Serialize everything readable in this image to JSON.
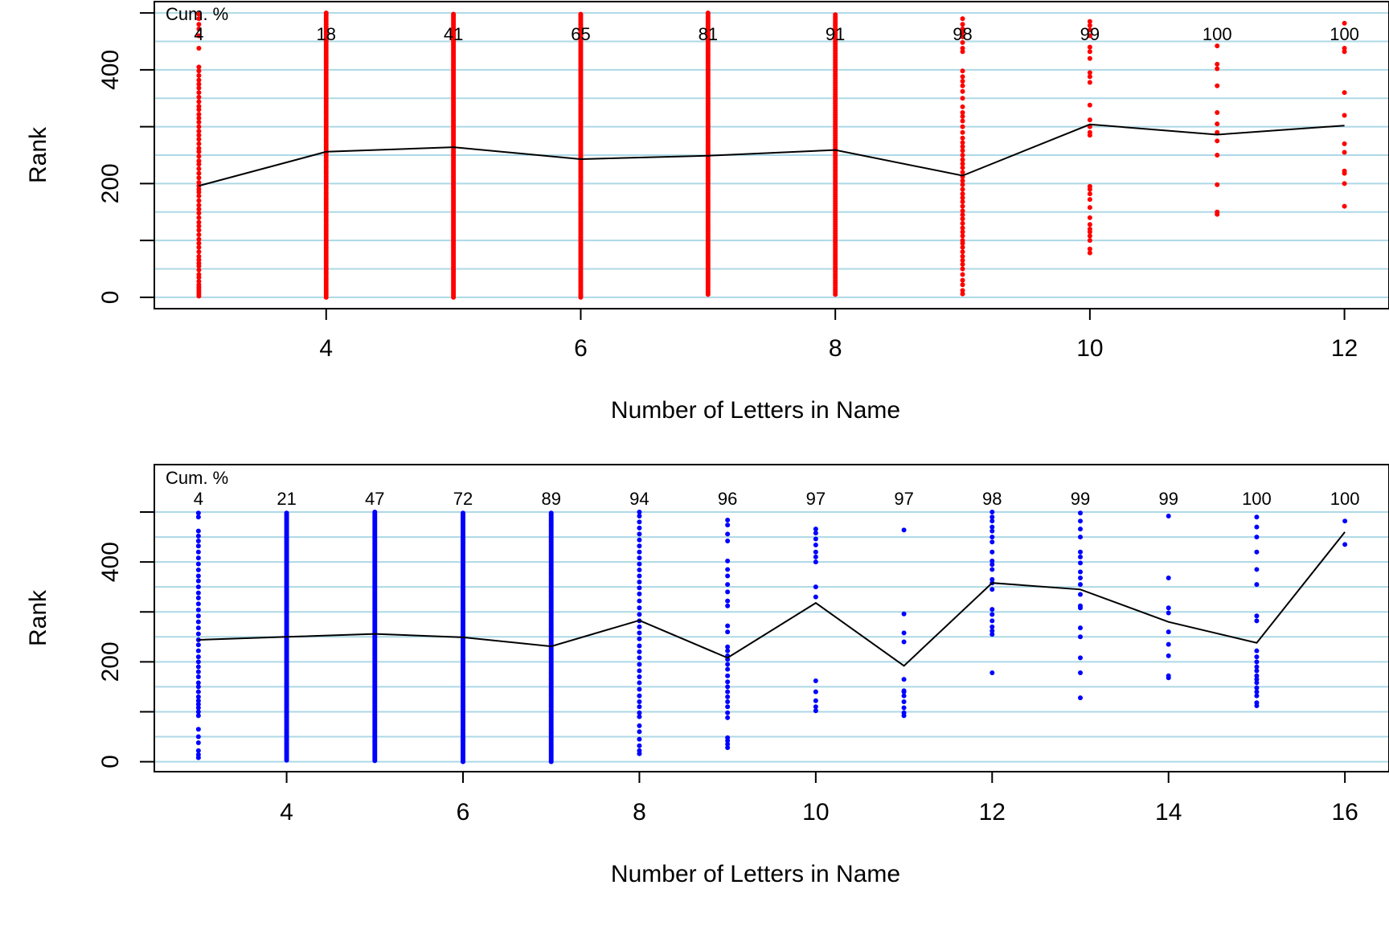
{
  "colors": {
    "top_points": "#ff0000",
    "bottom_points": "#0000ff",
    "mean_line": "#000000",
    "gridlines": "#add8e6",
    "frame": "#000000"
  },
  "chart_data": [
    {
      "type": "scatter",
      "point_color": "#ff0000",
      "xlabel": "Number of Letters in Name",
      "ylabel": "Rank",
      "xlim": [
        2.65,
        12.35
      ],
      "ylim": [
        -20,
        520
      ],
      "x_ticks": [
        4,
        6,
        8,
        10,
        12
      ],
      "y_ticks": [
        0,
        200,
        400
      ],
      "gridlines_y": [
        0,
        50,
        100,
        150,
        200,
        250,
        300,
        350,
        400,
        450,
        500
      ],
      "grid": true,
      "cum_header": "Cum. %",
      "cum_percent": {
        "x": [
          3,
          4,
          5,
          6,
          7,
          8,
          9,
          10,
          11,
          12
        ],
        "labels": [
          "4",
          "18",
          "41",
          "65",
          "81",
          "91",
          "98",
          "99",
          "100",
          "100"
        ]
      },
      "mean_line": {
        "x": [
          3,
          4,
          5,
          6,
          7,
          8,
          9,
          10,
          11,
          12
        ],
        "y": [
          196,
          256,
          264,
          243,
          249,
          259,
          214,
          304,
          286,
          302
        ]
      },
      "points": [
        {
          "x": 3,
          "ranks": [
            2,
            6,
            10,
            14,
            18,
            22,
            28,
            35,
            40,
            48,
            55,
            60,
            66,
            72,
            80,
            88,
            95,
            102,
            110,
            118,
            125,
            132,
            140,
            148,
            155,
            162,
            170,
            178,
            185,
            190,
            196,
            202,
            210,
            218,
            226,
            234,
            240,
            248,
            256,
            262,
            270,
            278,
            285,
            292,
            300,
            308,
            315,
            322,
            330,
            336,
            344,
            352,
            360,
            368,
            375,
            382,
            390,
            398,
            405,
            438,
            460,
            472,
            480,
            490,
            498
          ]
        },
        {
          "x": 4,
          "dense": [
            0,
            500,
            4
          ]
        },
        {
          "x": 5,
          "dense": [
            0,
            500,
            3
          ]
        },
        {
          "x": 6,
          "dense": [
            0,
            500,
            3
          ],
          "ranks": [
            3
          ]
        },
        {
          "x": 7,
          "dense": [
            5,
            500,
            3
          ]
        },
        {
          "x": 8,
          "dense": [
            5,
            500,
            4
          ]
        },
        {
          "x": 9,
          "ranks": [
            6,
            12,
            22,
            30,
            40,
            50,
            58,
            65,
            72,
            80,
            88,
            95,
            100,
            108,
            115,
            122,
            130,
            138,
            145,
            152,
            160,
            168,
            175,
            182,
            190,
            198,
            205,
            212,
            220,
            228,
            235,
            242,
            250,
            258,
            265,
            272,
            280,
            290,
            300,
            310,
            318,
            325,
            335,
            350,
            362,
            372,
            380,
            388,
            398,
            432,
            438,
            448,
            458,
            466,
            472,
            480,
            490
          ]
        },
        {
          "x": 10,
          "ranks": [
            78,
            85,
            100,
            108,
            115,
            120,
            128,
            140,
            158,
            172,
            182,
            190,
            195,
            285,
            290,
            300,
            312,
            338,
            378,
            388,
            395,
            420,
            432,
            440,
            460,
            470,
            478,
            485
          ]
        },
        {
          "x": 11,
          "ranks": [
            146,
            150,
            198,
            250,
            275,
            290,
            305,
            325,
            372,
            402,
            410,
            442
          ]
        },
        {
          "x": 12,
          "ranks": [
            160,
            200,
            218,
            222,
            255,
            270,
            320,
            360,
            432,
            438,
            482
          ]
        }
      ]
    },
    {
      "type": "scatter",
      "point_color": "#0000ff",
      "xlabel": "Number of Letters in Name",
      "ylabel": "Rank",
      "xlim": [
        2.5,
        16.5
      ],
      "ylim": [
        -20,
        595
      ],
      "x_ticks": [
        4,
        6,
        8,
        10,
        12,
        14,
        16
      ],
      "y_ticks": [
        0,
        200,
        400
      ],
      "gridlines_y": [
        0,
        50,
        100,
        150,
        200,
        250,
        300,
        350,
        400,
        450,
        500
      ],
      "grid": true,
      "cum_header": "Cum. %",
      "cum_percent": {
        "x": [
          3,
          4,
          5,
          6,
          7,
          8,
          9,
          10,
          11,
          12,
          13,
          14,
          15,
          16
        ],
        "labels": [
          "4",
          "21",
          "47",
          "72",
          "89",
          "94",
          "96",
          "97",
          "97",
          "98",
          "99",
          "99",
          "100",
          "100"
        ]
      },
      "mean_line": {
        "x": [
          3,
          4,
          5,
          6,
          7,
          8,
          9,
          10,
          11,
          12,
          13,
          14,
          15,
          16
        ],
        "y": [
          244,
          250,
          256,
          249,
          231,
          283,
          208,
          318,
          192,
          358,
          345,
          280,
          238,
          460
        ]
      },
      "points": [
        {
          "x": 3,
          "ranks": [
            8,
            14,
            22,
            38,
            50,
            65,
            92,
            100,
            108,
            115,
            122,
            130,
            140,
            150,
            158,
            170,
            180,
            190,
            200,
            210,
            222,
            234,
            244,
            256,
            268,
            280,
            292,
            304,
            316,
            328,
            338,
            350,
            362,
            372,
            384,
            396,
            408,
            420,
            432,
            442,
            452,
            462,
            490,
            498
          ]
        },
        {
          "x": 4,
          "dense": [
            3,
            500,
            3
          ]
        },
        {
          "x": 5,
          "dense": [
            2,
            500,
            3
          ]
        },
        {
          "x": 6,
          "dense": [
            0,
            500,
            3
          ]
        },
        {
          "x": 7,
          "dense": [
            0,
            500,
            3
          ]
        },
        {
          "x": 8,
          "ranks": [
            16,
            22,
            32,
            45,
            60,
            72,
            90,
            98,
            110,
            120,
            132,
            145,
            158,
            170,
            182,
            195,
            208,
            220,
            232,
            246,
            258,
            270,
            282,
            295,
            308,
            322,
            336,
            348,
            360,
            372,
            384,
            396,
            408,
            420,
            432,
            444,
            456,
            468,
            480,
            492,
            500
          ]
        },
        {
          "x": 9,
          "ranks": [
            28,
            35,
            42,
            48,
            88,
            98,
            110,
            120,
            130,
            140,
            150,
            160,
            172,
            185,
            195,
            205,
            212,
            222,
            230,
            260,
            272,
            312,
            322,
            340,
            355,
            372,
            385,
            402,
            442,
            456,
            474,
            484
          ]
        },
        {
          "x": 10,
          "ranks": [
            102,
            110,
            122,
            140,
            162,
            330,
            350,
            400,
            410,
            420,
            434,
            446,
            458,
            466
          ]
        },
        {
          "x": 11,
          "ranks": [
            92,
            98,
            108,
            120,
            132,
            140,
            142,
            165,
            240,
            258,
            296,
            464
          ]
        },
        {
          "x": 12,
          "ranks": [
            178,
            255,
            262,
            270,
            282,
            295,
            305,
            345,
            358,
            365,
            385,
            395,
            402,
            420,
            440,
            450,
            462,
            470,
            482,
            490,
            500
          ]
        },
        {
          "x": 13,
          "ranks": [
            128,
            178,
            208,
            250,
            268,
            308,
            312,
            335,
            355,
            368,
            380,
            398,
            410,
            420,
            450,
            466,
            482,
            498
          ]
        },
        {
          "x": 14,
          "ranks": [
            168,
            172,
            212,
            235,
            260,
            298,
            308,
            368,
            492
          ]
        },
        {
          "x": 15,
          "ranks": [
            112,
            118,
            132,
            140,
            148,
            158,
            165,
            172,
            182,
            190,
            200,
            210,
            222,
            282,
            292,
            355,
            385,
            420,
            450,
            470,
            490
          ]
        },
        {
          "x": 16,
          "ranks": [
            435,
            482
          ]
        }
      ]
    }
  ]
}
